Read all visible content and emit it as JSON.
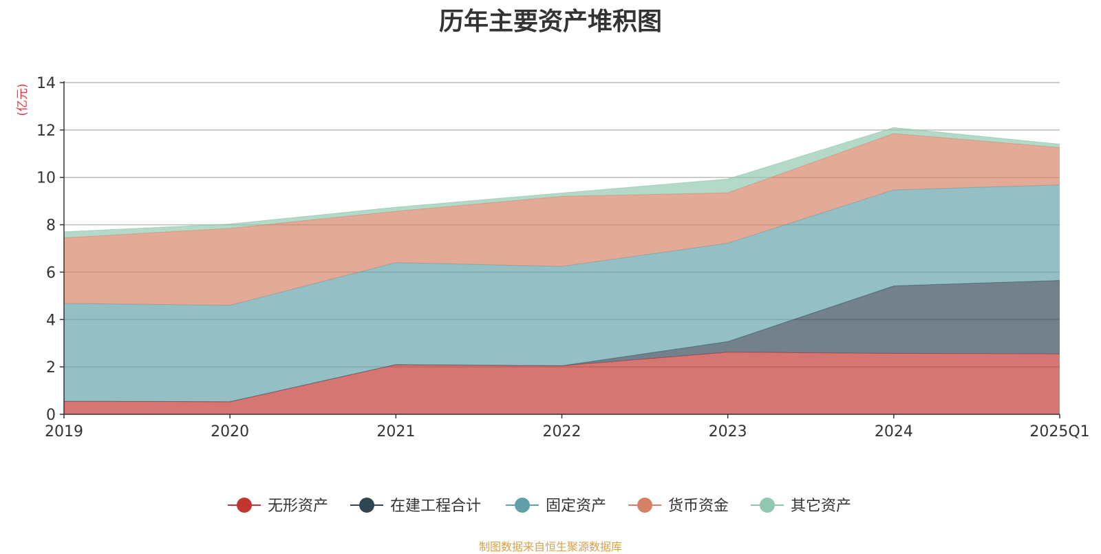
{
  "title": "历年主要资产堆积图",
  "source": "制图数据来自恒生聚源数据库",
  "chart_data": {
    "type": "area",
    "stacked": true,
    "categories": [
      "2019",
      "2020",
      "2021",
      "2022",
      "2023",
      "2024",
      "2025Q1"
    ],
    "ylabel": "(亿元)",
    "ylim": [
      0,
      14
    ],
    "yticks": [
      0,
      2,
      4,
      6,
      8,
      10,
      12,
      14
    ],
    "grid": true,
    "legend_position": "bottom",
    "series": [
      {
        "name": "无形资产",
        "color": "#c23531",
        "values": [
          0.55,
          0.53,
          2.1,
          2.05,
          2.62,
          2.57,
          2.55
        ]
      },
      {
        "name": "在建工程合计",
        "color": "#2f4554",
        "values": [
          0.0,
          0.0,
          0.0,
          0.0,
          0.45,
          2.85,
          3.1
        ]
      },
      {
        "name": "固定资产",
        "color": "#61a0a8",
        "values": [
          4.13,
          4.07,
          4.3,
          4.19,
          4.15,
          4.05,
          4.03
        ]
      },
      {
        "name": "货币资金",
        "color": "#d48265",
        "values": [
          2.77,
          3.25,
          2.17,
          2.96,
          2.13,
          2.38,
          1.58
        ]
      },
      {
        "name": "其它资产",
        "color": "#91c7ae",
        "values": [
          0.25,
          0.18,
          0.17,
          0.14,
          0.58,
          0.25,
          0.14
        ]
      }
    ]
  }
}
